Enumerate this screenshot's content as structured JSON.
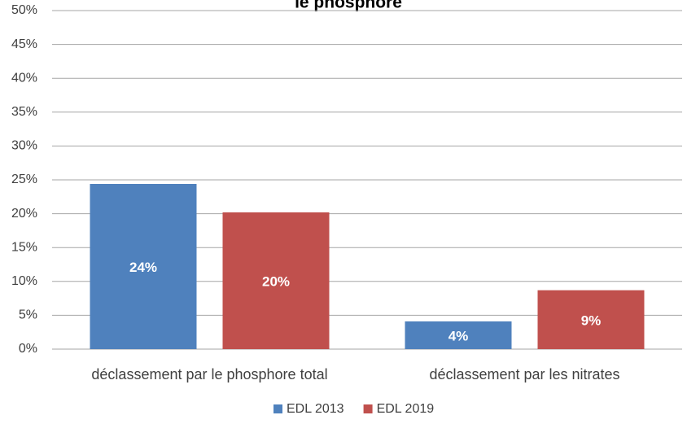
{
  "chart_data": {
    "type": "bar",
    "title": "le phosphore",
    "categories": [
      "déclassement par le phosphore total",
      "déclassement par les nitrates"
    ],
    "series": [
      {
        "name": "EDL 2013",
        "color": "#4f81bd",
        "values": [
          24.4,
          4.1
        ],
        "value_labels": [
          "24%",
          "4%"
        ]
      },
      {
        "name": "EDL 2019",
        "color": "#c0504d",
        "values": [
          20.2,
          8.7
        ],
        "value_labels": [
          "20%",
          "9%"
        ]
      }
    ],
    "ylim": [
      0,
      50
    ],
    "yticks": [
      {
        "value": 0,
        "label": "0%"
      },
      {
        "value": 5,
        "label": "5%"
      },
      {
        "value": 10,
        "label": "10%"
      },
      {
        "value": 15,
        "label": "15%"
      },
      {
        "value": 20,
        "label": "20%"
      },
      {
        "value": 25,
        "label": "25%"
      },
      {
        "value": 30,
        "label": "30%"
      },
      {
        "value": 35,
        "label": "35%"
      },
      {
        "value": 40,
        "label": "40%"
      },
      {
        "value": 45,
        "label": "45%"
      },
      {
        "value": 50,
        "label": "50%"
      }
    ],
    "grid": true,
    "legend": "bottom"
  }
}
